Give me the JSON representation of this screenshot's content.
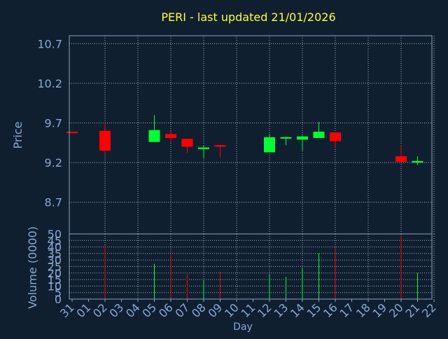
{
  "title": "PERI - last updated 21/01/2026",
  "colors": {
    "background": "#0f1f30",
    "axis": "#8aa0c0",
    "grid": "#c8d2e0",
    "label": "#8aa8d0",
    "title": "#ffff33",
    "up": "#00ff33",
    "down": "#ff0000"
  },
  "chart_data": [
    {
      "type": "candlestick",
      "ylabel": "Price",
      "ylim": [
        8.3,
        10.8
      ],
      "yticks": [
        "8.7",
        "9.2",
        "9.7",
        "10.2",
        "10.7"
      ],
      "grid": true,
      "days": [
        "31",
        "01",
        "02",
        "03",
        "04",
        "05",
        "06",
        "07",
        "08",
        "09",
        "10",
        "11",
        "12",
        "13",
        "14",
        "15",
        "16",
        "17",
        "18",
        "19",
        "20",
        "21",
        "22"
      ],
      "candles": [
        {
          "day": "31",
          "open": 9.59,
          "close": 9.57,
          "high": 9.59,
          "low": 9.57
        },
        {
          "day": "02",
          "open": 9.6,
          "close": 9.35,
          "high": 9.71,
          "low": 9.3
        },
        {
          "day": "05",
          "open": 9.46,
          "close": 9.61,
          "high": 9.8,
          "low": 9.46
        },
        {
          "day": "06",
          "open": 9.56,
          "close": 9.51,
          "high": 9.6,
          "low": 9.45
        },
        {
          "day": "07",
          "open": 9.5,
          "close": 9.4,
          "high": 9.5,
          "low": 9.32
        },
        {
          "day": "08",
          "open": 9.37,
          "close": 9.39,
          "high": 9.42,
          "low": 9.25
        },
        {
          "day": "09",
          "open": 9.42,
          "close": 9.4,
          "high": 9.42,
          "low": 9.26
        },
        {
          "day": "12",
          "open": 9.33,
          "close": 9.52,
          "high": 9.56,
          "low": 9.33
        },
        {
          "day": "13",
          "open": 9.51,
          "close": 9.52,
          "high": 9.53,
          "low": 9.42
        },
        {
          "day": "14",
          "open": 9.49,
          "close": 9.53,
          "high": 9.54,
          "low": 9.35
        },
        {
          "day": "15",
          "open": 9.51,
          "close": 9.59,
          "high": 9.71,
          "low": 9.51
        },
        {
          "day": "16",
          "open": 9.58,
          "close": 9.47,
          "high": 9.58,
          "low": 9.38
        },
        {
          "day": "20",
          "open": 9.28,
          "close": 9.21,
          "high": 9.42,
          "low": 9.19
        },
        {
          "day": "21",
          "open": 9.2,
          "close": 9.22,
          "high": 9.28,
          "low": 9.17
        }
      ]
    },
    {
      "type": "bar",
      "xlabel": "Day",
      "ylabel": "Volume (0000)",
      "ylim": [
        0,
        50
      ],
      "yticks": [
        "0",
        "5",
        "10",
        "15",
        "20",
        "25",
        "30",
        "35",
        "40",
        "45",
        "50"
      ],
      "grid": true,
      "bars": [
        {
          "day": "02",
          "value": 41,
          "direction": "down"
        },
        {
          "day": "05",
          "value": 27,
          "direction": "up"
        },
        {
          "day": "06",
          "value": 34,
          "direction": "down"
        },
        {
          "day": "07",
          "value": 19,
          "direction": "down"
        },
        {
          "day": "08",
          "value": 14,
          "direction": "up"
        },
        {
          "day": "09",
          "value": 21,
          "direction": "down"
        },
        {
          "day": "12",
          "value": 19,
          "direction": "up"
        },
        {
          "day": "13",
          "value": 17,
          "direction": "up"
        },
        {
          "day": "14",
          "value": 24,
          "direction": "up"
        },
        {
          "day": "15",
          "value": 35,
          "direction": "up"
        },
        {
          "day": "16",
          "value": 40,
          "direction": "down"
        },
        {
          "day": "20",
          "value": 49,
          "direction": "down"
        },
        {
          "day": "21",
          "value": 20,
          "direction": "up"
        }
      ]
    }
  ]
}
